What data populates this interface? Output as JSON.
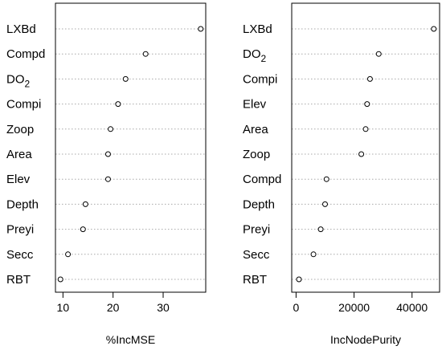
{
  "chart_data": [
    {
      "type": "scatter",
      "categories": [
        "LXBd",
        "Compd",
        "DO2",
        "Compi",
        "Zoop",
        "Area",
        "Elev",
        "Depth",
        "Preyi",
        "Secc",
        "RBT"
      ],
      "category_labels": [
        {
          "text": "LXBd",
          "sub": ""
        },
        {
          "text": "Compd",
          "sub": ""
        },
        {
          "text": "DO",
          "sub": "2"
        },
        {
          "text": "Compi",
          "sub": ""
        },
        {
          "text": "Zoop",
          "sub": ""
        },
        {
          "text": "Area",
          "sub": ""
        },
        {
          "text": "Elev",
          "sub": ""
        },
        {
          "text": "Depth",
          "sub": ""
        },
        {
          "text": "Preyi",
          "sub": ""
        },
        {
          "text": "Secc",
          "sub": ""
        },
        {
          "text": "RBT",
          "sub": ""
        }
      ],
      "values": [
        37.5,
        26.5,
        22.5,
        21.0,
        19.5,
        19.0,
        19.0,
        14.5,
        14.0,
        11.0,
        9.5
      ],
      "xlabel": "%IncMSE",
      "xlim": [
        8.5,
        38.5
      ],
      "xticks": [
        "10",
        "20",
        "30"
      ],
      "xtick_values": [
        10,
        20,
        30
      ],
      "grid": "dotted horizontal guides"
    },
    {
      "type": "scatter",
      "categories": [
        "LXBd",
        "DO2",
        "Compi",
        "Elev",
        "Area",
        "Zoop",
        "Compd",
        "Depth",
        "Preyi",
        "Secc",
        "RBT"
      ],
      "category_labels": [
        {
          "text": "LXBd",
          "sub": ""
        },
        {
          "text": "DO",
          "sub": "2"
        },
        {
          "text": "Compi",
          "sub": ""
        },
        {
          "text": "Elev",
          "sub": ""
        },
        {
          "text": "Area",
          "sub": ""
        },
        {
          "text": "Zoop",
          "sub": ""
        },
        {
          "text": "Compd",
          "sub": ""
        },
        {
          "text": "Depth",
          "sub": ""
        },
        {
          "text": "Preyi",
          "sub": ""
        },
        {
          "text": "Secc",
          "sub": ""
        },
        {
          "text": "RBT",
          "sub": ""
        }
      ],
      "values": [
        47500,
        28500,
        25500,
        24500,
        24000,
        22500,
        10500,
        10000,
        8500,
        6000,
        1000
      ],
      "xlabel": "IncNodePurity",
      "xlim": [
        -1500,
        49500
      ],
      "xticks": [
        "0",
        "20000",
        "40000"
      ],
      "xtick_values": [
        0,
        20000,
        40000
      ],
      "grid": "dotted horizontal guides"
    }
  ]
}
